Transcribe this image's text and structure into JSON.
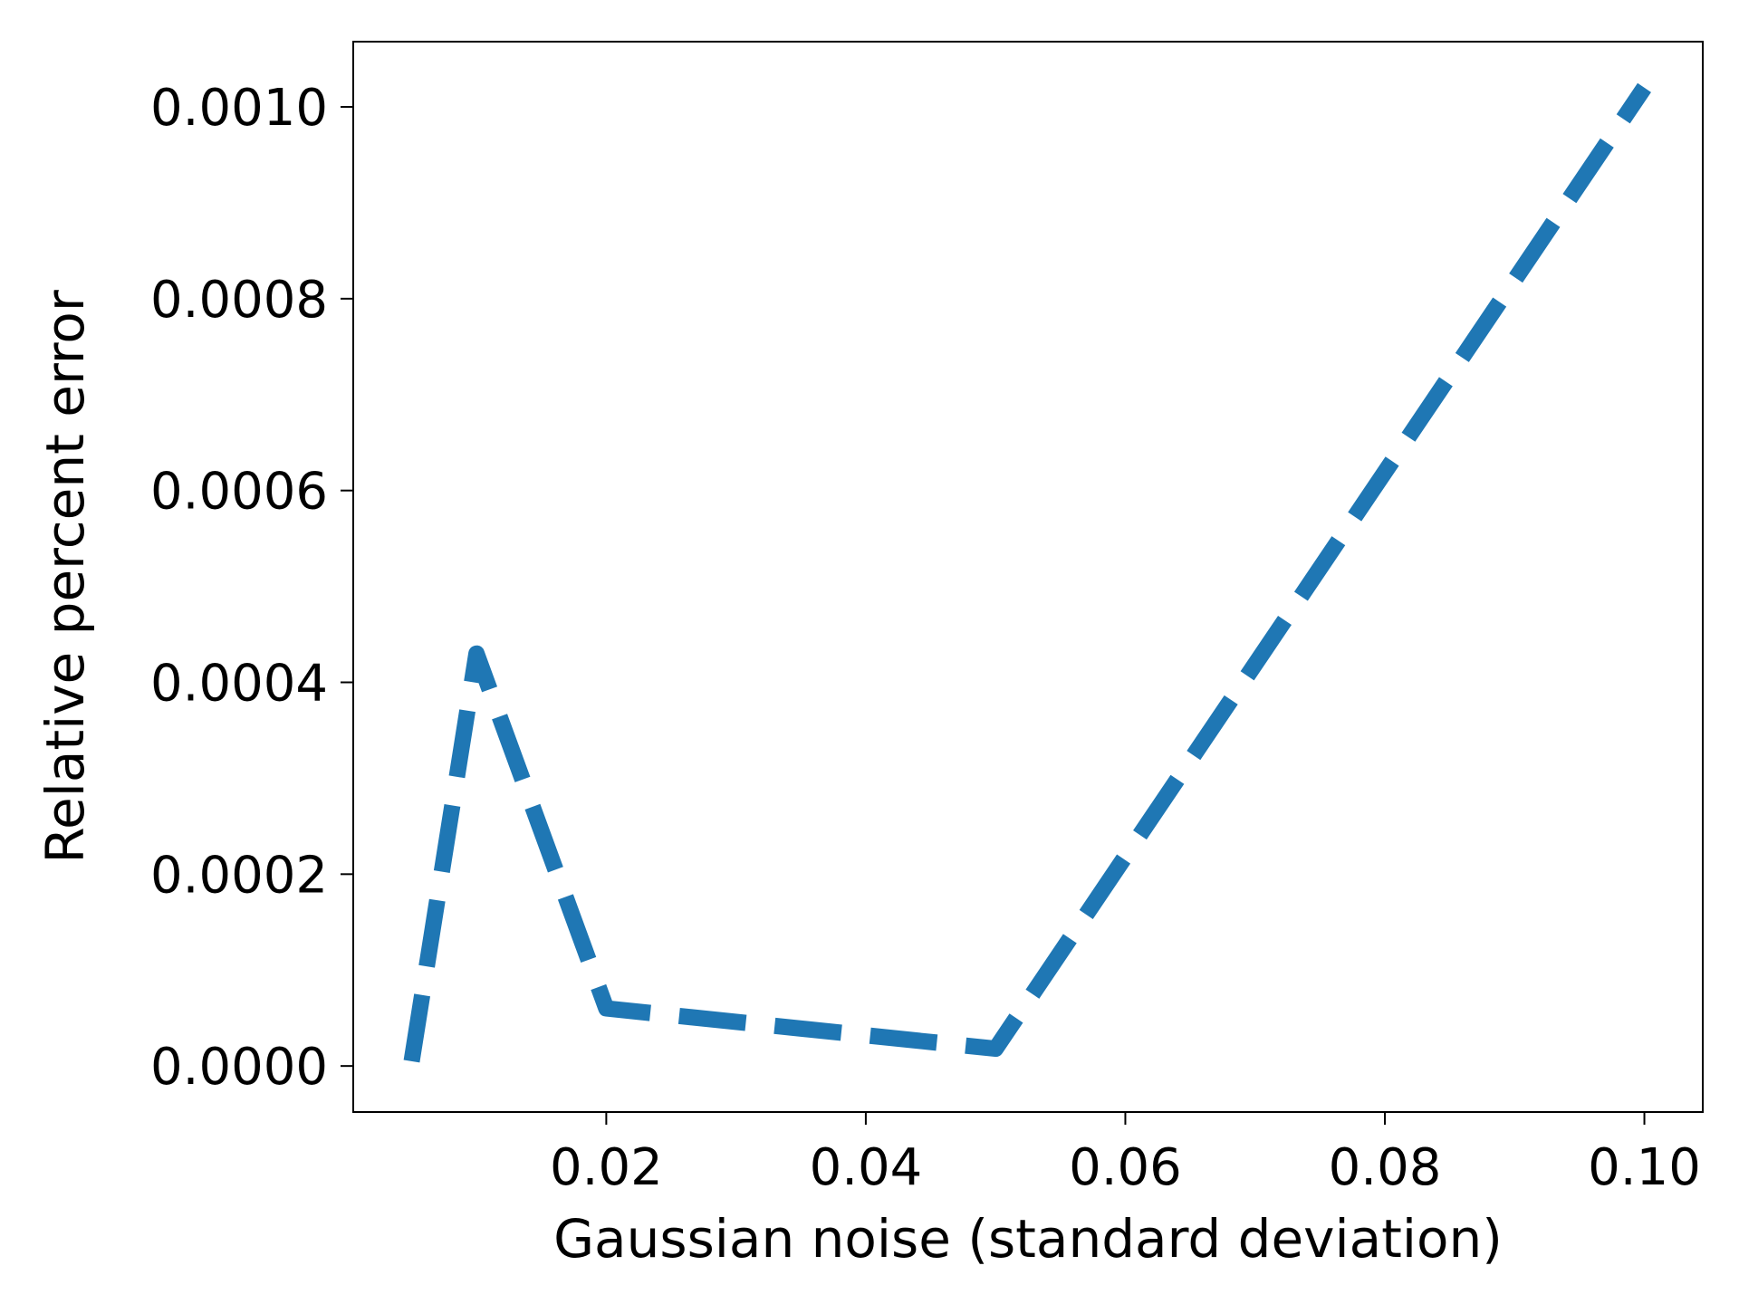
{
  "chart_data": {
    "type": "line",
    "xlabel": "Gaussian noise (standard deviation)",
    "ylabel": "Relative percent error",
    "xlim": [
      0.0005,
      0.1045
    ],
    "ylim": [
      -4.8e-05,
      0.001068
    ],
    "x_ticks": [
      0.02,
      0.04,
      0.06,
      0.08,
      0.1
    ],
    "x_tick_labels": [
      "0.02",
      "0.04",
      "0.06",
      "0.08",
      "0.10"
    ],
    "y_ticks": [
      0.0,
      0.0002,
      0.0004,
      0.0006,
      0.0008,
      0.001
    ],
    "y_tick_labels": [
      "0.0000",
      "0.0002",
      "0.0004",
      "0.0006",
      "0.0008",
      "0.0010"
    ],
    "grid": false,
    "series": [
      {
        "style": "dashed",
        "color": "#1f77b4",
        "x": [
          0.005,
          0.01,
          0.02,
          0.05,
          0.1
        ],
        "y": [
          5e-06,
          0.00043,
          6e-05,
          1.8e-05,
          0.00102
        ]
      }
    ]
  }
}
